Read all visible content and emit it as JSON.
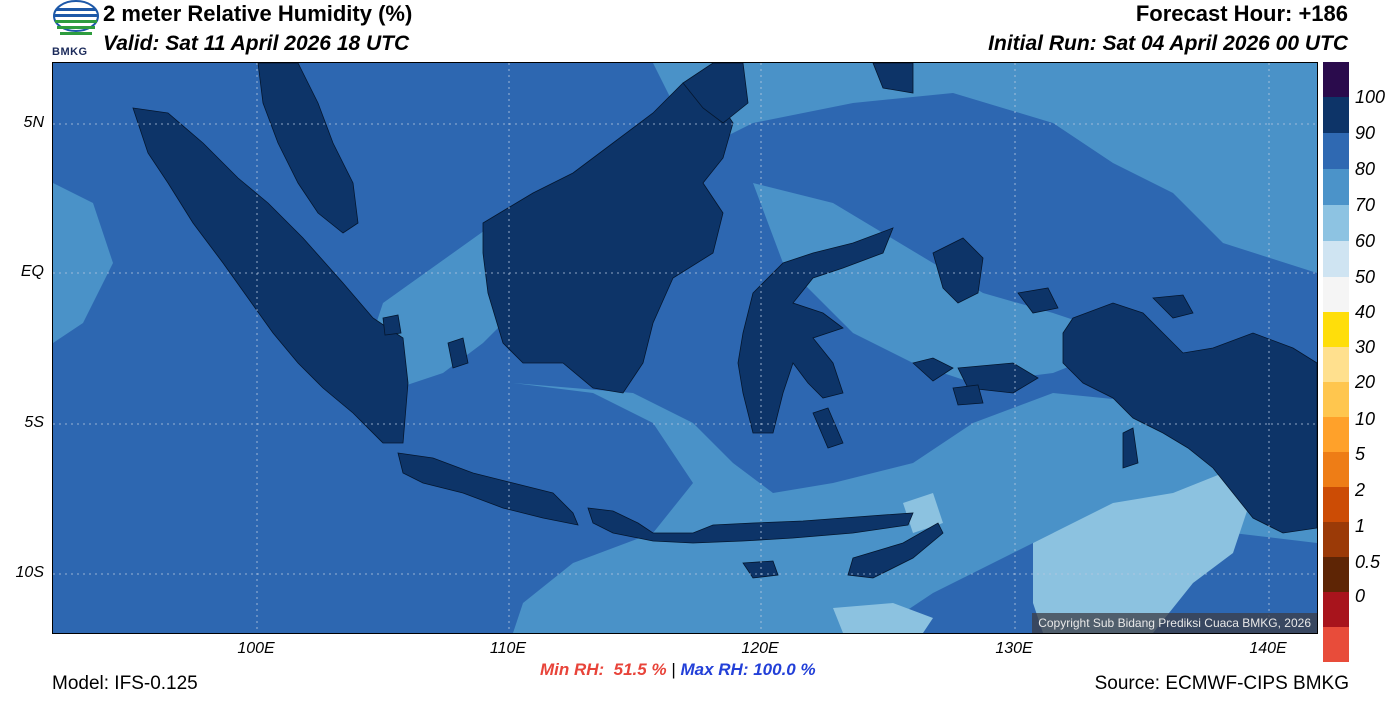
{
  "header": {
    "title": "2 meter Relative Humidity (%)",
    "valid": "Valid: Sat 11 April 2026 18 UTC",
    "forecast_hour": "Forecast Hour: +186",
    "initial_run": "Initial Run: Sat 04 April 2026 00 UTC",
    "logo_text": "BMKG"
  },
  "map": {
    "lat_labels": [
      "5N",
      "EQ",
      "5S",
      "10S"
    ],
    "lon_labels": [
      "100E",
      "110E",
      "120E",
      "130E",
      "140E"
    ],
    "copyright": "Copyright Sub Bidang Prediksi Cuaca BMKG, 2026",
    "colors": {
      "ocean_dark": "#2d67b1",
      "ocean_mid": "#4a92c8",
      "ocean_light": "#8cc2e0",
      "land": "#0d3468"
    }
  },
  "colorbar": {
    "labels": [
      "100",
      "90",
      "80",
      "70",
      "60",
      "50",
      "40",
      "30",
      "20",
      "10",
      "5",
      "2",
      "1",
      "0.5",
      "0"
    ],
    "colors": [
      "#2a0b4c",
      "#0d3468",
      "#2f69b2",
      "#4b93c9",
      "#8dc3e2",
      "#cfe4f2",
      "#f5f5f5",
      "#f4f4f4",
      "#ffde0a",
      "#ffe08e",
      "#ffc64e",
      "#ffa12a",
      "#ee7d16",
      "#cc4c05",
      "#9b3a07",
      "#5e2505",
      "#a8141c",
      "#e84c3a"
    ]
  },
  "footer": {
    "model": "Model: IFS-0.125",
    "source": "Source: ECMWF-CIPS BMKG",
    "min_rh": "Min RH:  51.5 %",
    "separator": " | ",
    "max_rh": "Max RH: 100.0 %"
  }
}
